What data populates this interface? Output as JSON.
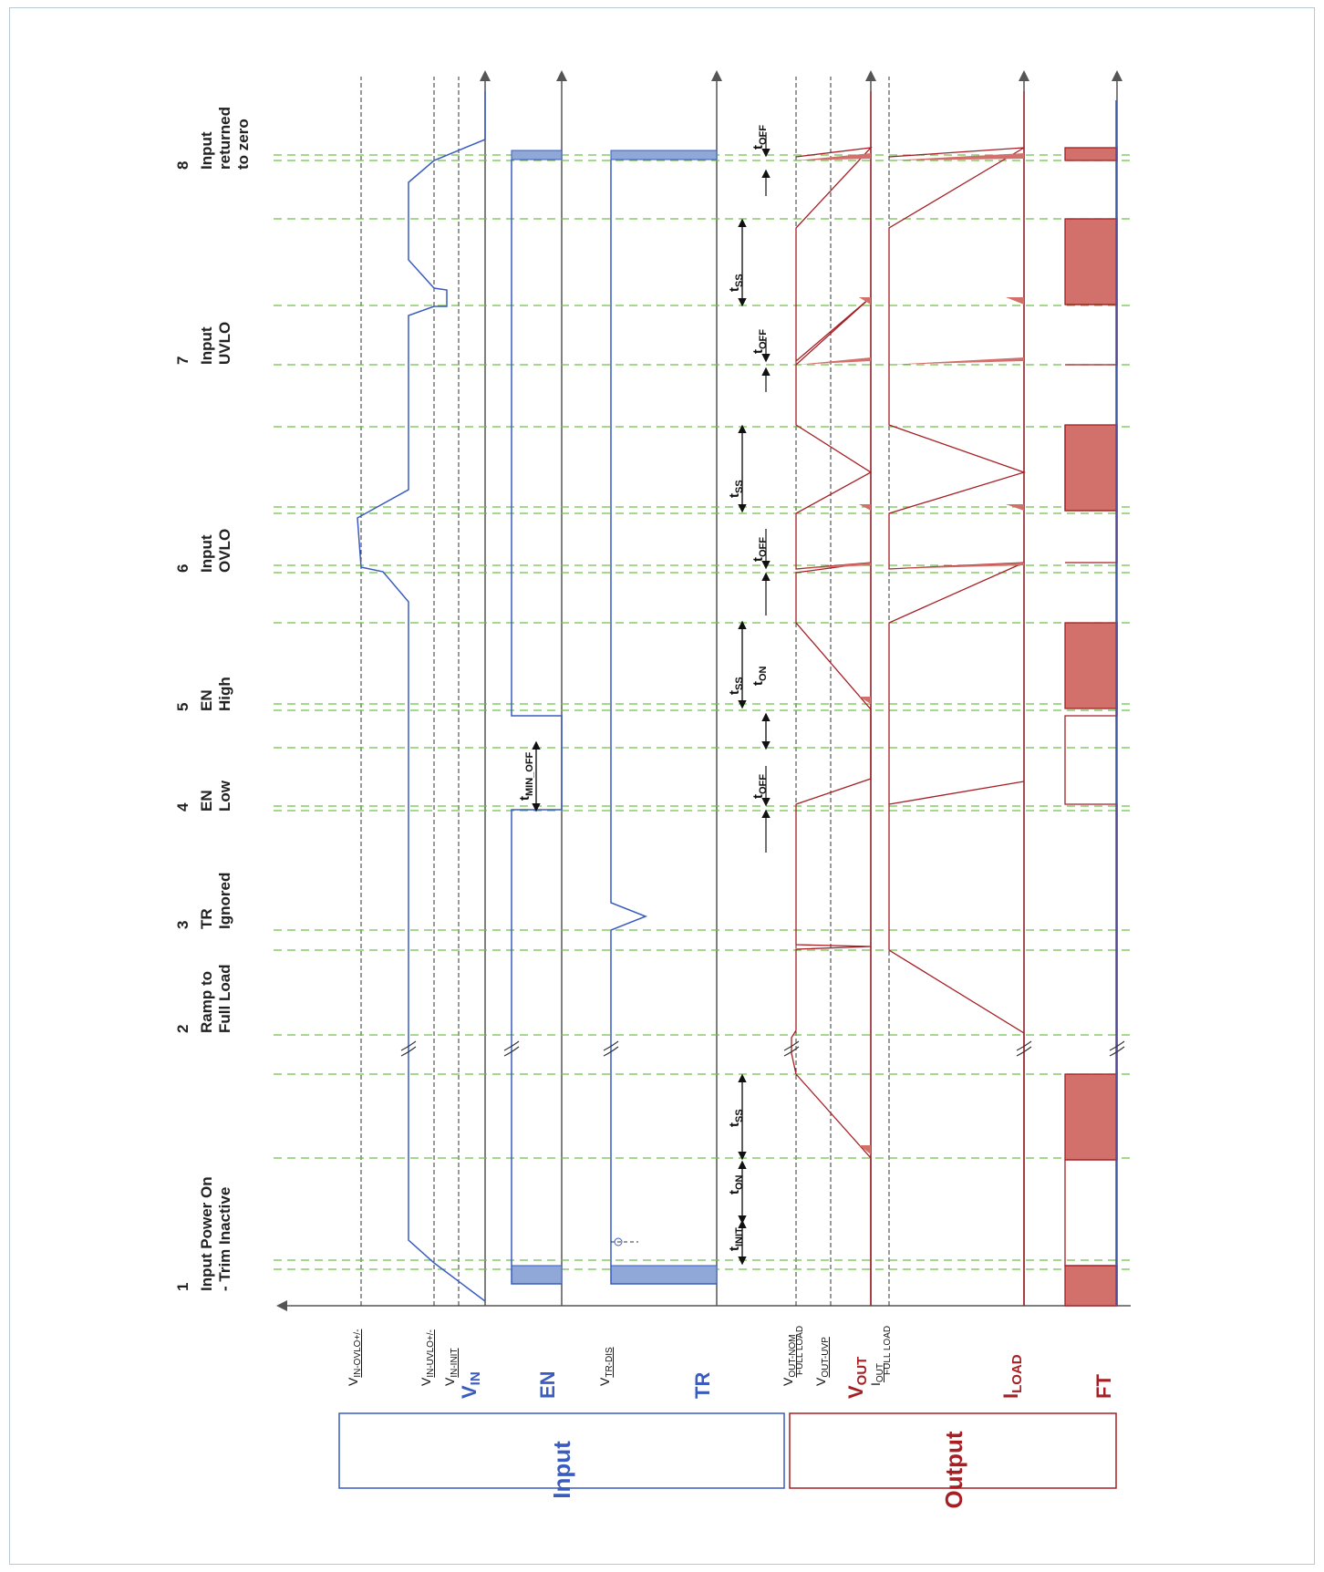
{
  "colors": {
    "input": "#3a5bbf",
    "output": "#a51f24",
    "fill_blue": "#8fa8d8",
    "fill_red": "#d2706b",
    "grid_green": "#6cc04a",
    "axis": "#555555",
    "text": "#222222"
  },
  "events": [
    {
      "num": "1",
      "lines": [
        "Input Power On",
        "- Trim Inactive"
      ]
    },
    {
      "num": "2",
      "lines": [
        "Ramp to",
        "Full Load"
      ]
    },
    {
      "num": "3",
      "lines": [
        "TR",
        "Ignored"
      ]
    },
    {
      "num": "4",
      "lines": [
        "EN",
        "Low"
      ]
    },
    {
      "num": "5",
      "lines": [
        "EN",
        "High"
      ]
    },
    {
      "num": "6",
      "lines": [
        "Input",
        "OVLO"
      ]
    },
    {
      "num": "7",
      "lines": [
        "Input",
        "UVLO"
      ]
    },
    {
      "num": "8",
      "lines": [
        "Input",
        "returned",
        "to zero"
      ]
    }
  ],
  "signals": {
    "vin": {
      "main": "V",
      "sub": "IN"
    },
    "en": {
      "main": "EN"
    },
    "tr": {
      "main": "TR"
    },
    "vout": {
      "main": "V",
      "sub": "OUT"
    },
    "iload": {
      "main": "I",
      "sub": "LOAD"
    },
    "ft": {
      "main": "FT"
    }
  },
  "thresholds": {
    "ovlo": {
      "main": "V",
      "sub": "IN-OVLO+/-"
    },
    "uvlo": {
      "main": "V",
      "sub": "IN-UVLO+/-"
    },
    "init": {
      "main": "V",
      "sub": "IN-INIT"
    },
    "trdis": {
      "main": "V",
      "sub": "TR-DIS"
    },
    "vnom": {
      "main": "V",
      "sub": "OUT-NOM",
      "sub2": "FULL LOAD"
    },
    "vuvp": {
      "main": "V",
      "sub": "OUT-UVP"
    },
    "iout": {
      "main": "I",
      "sub": "OUT",
      "sub2": "FULL LOAD"
    }
  },
  "timing": {
    "init": {
      "main": "t",
      "sub": "INIT"
    },
    "on": {
      "main": "t",
      "sub": "ON"
    },
    "ss": {
      "main": "t",
      "sub": "SS"
    },
    "off": {
      "main": "t",
      "sub": "OFF"
    },
    "min_off": {
      "main": "t",
      "sub": "MIN_OFF"
    }
  },
  "groups": {
    "input": "Input",
    "output": "Output"
  }
}
